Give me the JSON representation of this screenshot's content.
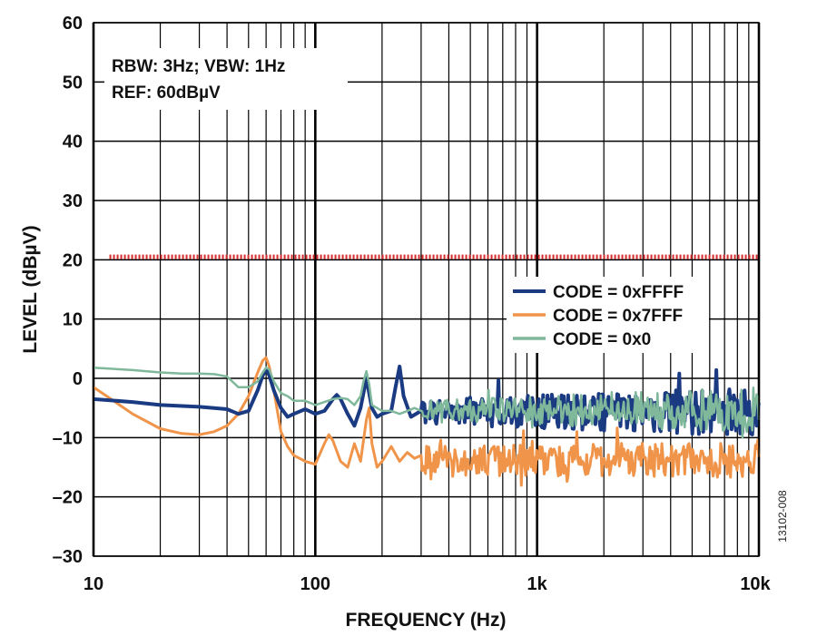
{
  "chart_data": {
    "type": "line",
    "title": "",
    "xlabel": "FREQUENCY (Hz)",
    "ylabel": "LEVEL (dBµV)",
    "x_scale": "log",
    "xlim": [
      10,
      10000
    ],
    "ylim": [
      -30,
      60
    ],
    "x_ticks": [
      10,
      100,
      1000,
      10000
    ],
    "x_tick_labels": [
      "10",
      "100",
      "1k",
      "10k"
    ],
    "y_ticks": [
      -30,
      -20,
      -10,
      0,
      10,
      20,
      30,
      40,
      50,
      60
    ],
    "y_tick_labels": [
      "–30",
      "–20",
      "–10",
      "0",
      "10",
      "20",
      "30",
      "40",
      "50",
      "60"
    ],
    "grid": true,
    "annotation_lines": [
      "RBW: 3Hz; VBW: 1Hz",
      "REF: 60dBµV"
    ],
    "figure_id": "13102-008",
    "legend_position": "right",
    "limit_line": {
      "y": 20.5,
      "color": "#d62b2b",
      "style": "dotted"
    },
    "series": [
      {
        "name": "CODE = 0xFFFF",
        "color": "#1a3a82",
        "width": 4,
        "noise_start": 300,
        "noise_mean": -5.6,
        "noise_amp": 1.5,
        "noise_amp_end": 3,
        "x": [
          10,
          15,
          20,
          30,
          35,
          40,
          45,
          50,
          55,
          58,
          60,
          62,
          65,
          70,
          75,
          80,
          90,
          100,
          110,
          120,
          125,
          130,
          140,
          150,
          160,
          170,
          180,
          190,
          200,
          220,
          230,
          240,
          250,
          270,
          300
        ],
        "y": [
          -3.5,
          -4,
          -4.5,
          -4.8,
          -5,
          -5.2,
          -6,
          -5.5,
          -2,
          0.5,
          1.5,
          0.5,
          -2,
          -5,
          -6.5,
          -6,
          -5.2,
          -6,
          -5.5,
          -3.5,
          -2.8,
          -3.5,
          -6,
          -8,
          -5,
          0,
          -5,
          -6.5,
          -6,
          -5.5,
          -1.5,
          2,
          -3,
          -6.5,
          -5.5
        ]
      },
      {
        "name": "CODE = 0x7FFF",
        "color": "#f0944a",
        "width": 3,
        "noise_start": 300,
        "noise_mean": -13.8,
        "noise_amp": 1.8,
        "noise_amp_end": 2.2,
        "x": [
          10,
          12,
          15,
          20,
          25,
          30,
          35,
          40,
          45,
          50,
          55,
          58,
          60,
          62,
          65,
          70,
          75,
          80,
          90,
          100,
          110,
          115,
          120,
          130,
          140,
          150,
          160,
          170,
          175,
          180,
          190,
          200,
          220,
          240,
          260,
          280,
          300
        ],
        "y": [
          -1.5,
          -3.5,
          -6,
          -8.5,
          -9.3,
          -9.5,
          -9,
          -8,
          -6,
          -3,
          1,
          3,
          3.5,
          2,
          -2,
          -9,
          -11.5,
          -13,
          -14,
          -14.5,
          -11,
          -9.5,
          -10.5,
          -14,
          -15,
          -11,
          -14,
          -7,
          -5,
          -11,
          -15,
          -14,
          -11.5,
          -14,
          -12.5,
          -13.5,
          -13
        ]
      },
      {
        "name": "CODE = 0x0",
        "color": "#7fb89a",
        "width": 2.5,
        "noise_start": 300,
        "noise_mean": -5.4,
        "noise_amp": 1.2,
        "noise_amp_end": 2.8,
        "x": [
          10,
          15,
          20,
          25,
          30,
          35,
          40,
          45,
          50,
          55,
          58,
          60,
          62,
          65,
          70,
          75,
          80,
          90,
          100,
          110,
          120,
          130,
          140,
          150,
          160,
          165,
          170,
          175,
          180,
          190,
          200,
          220,
          240,
          260,
          280,
          300
        ],
        "y": [
          1.8,
          1.4,
          1,
          0.8,
          0.8,
          0.7,
          0.3,
          -1.5,
          -1.5,
          -0.5,
          1,
          1.8,
          1.5,
          -0.5,
          -2.5,
          -3,
          -3.8,
          -3.8,
          -4.5,
          -4,
          -3.5,
          -3.3,
          -3.5,
          -4.5,
          -3,
          -0.5,
          1.2,
          -1,
          -4.5,
          -5,
          -5.5,
          -5.5,
          -6,
          -5.5,
          -5,
          -5.5
        ]
      }
    ]
  }
}
